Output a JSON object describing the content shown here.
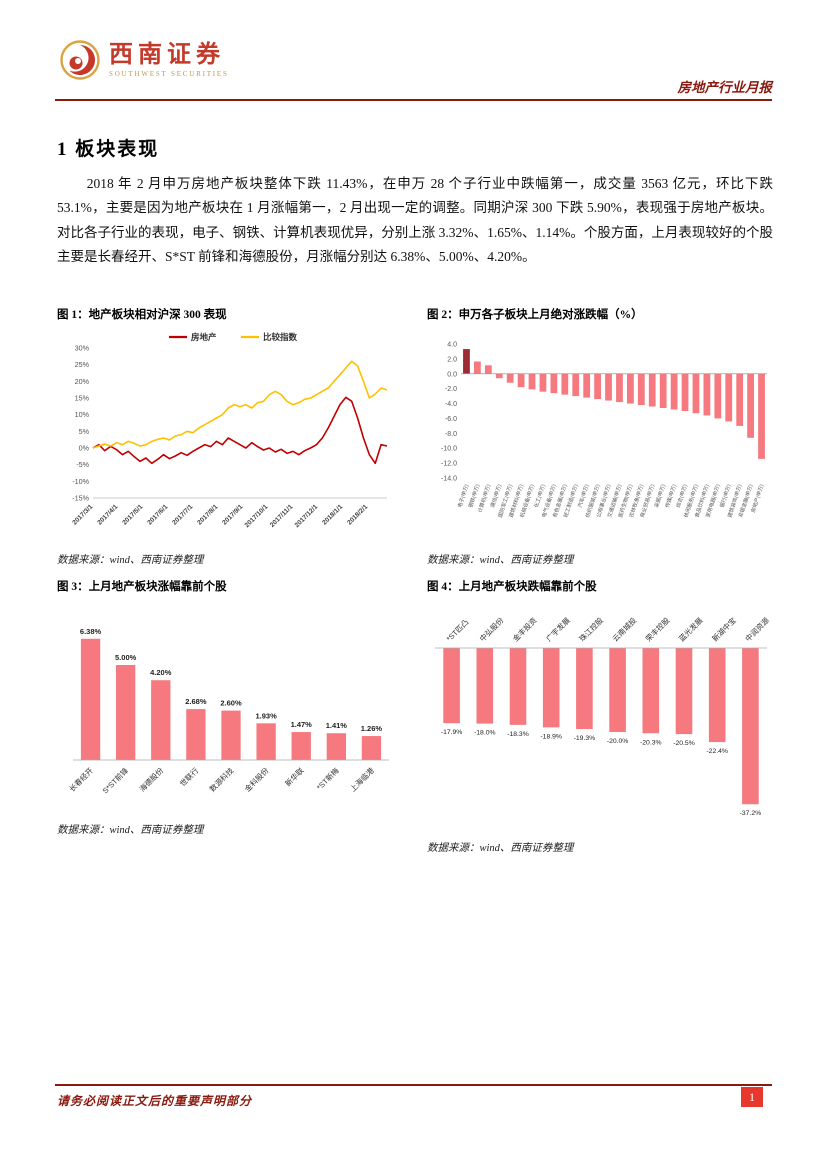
{
  "header": {
    "logo_cn": "西南证券",
    "logo_en": "SOUTHWEST SECURITIES",
    "report_title": "房地产行业月报"
  },
  "section": {
    "title": "1 板块表现",
    "paragraph": "2018 年 2 月申万房地产板块整体下跌 11.43%，在申万 28 个子行业中跌幅第一，成交量 3563 亿元，环比下跌 53.1%，主要是因为地产板块在 1 月涨幅第一，2 月出现一定的调整。同期沪深 300 下跌 5.90%，表现强于房地产板块。对比各子行业的表现，电子、钢铁、计算机表现优异，分别上涨 3.32%、1.65%、1.14%。个股方面，上月表现较好的个股主要是长春经开、S*ST 前锋和海德股份，月涨幅分别达 6.38%、5.00%、4.20%。"
  },
  "figures": [
    {
      "title": "图 1：地产板块相对沪深 300 表现",
      "source": "数据来源：wind、西南证券整理"
    },
    {
      "title": "图 2：申万各子板块上月绝对涨跌幅（%）",
      "source": "数据来源：wind、西南证券整理"
    },
    {
      "title": "图 3：上月地产板块涨幅靠前个股",
      "source": "数据来源：wind、西南证券整理"
    },
    {
      "title": "图 4：上月地产板块跌幅靠前个股",
      "source": "数据来源：wind、西南证券整理"
    }
  ],
  "chart_data": [
    {
      "type": "line",
      "title": "地产板块相对沪深300表现",
      "x_tick_labels": [
        "2017/3/1",
        "2017/4/1",
        "2017/5/1",
        "2017/6/1",
        "2017/7/1",
        "2017/8/1",
        "2017/9/1",
        "2017/10/1",
        "2017/11/1",
        "2017/12/1",
        "2018/1/1",
        "2018/2/1"
      ],
      "ylim": [
        -15,
        30
      ],
      "y_tick_step": 5,
      "y_tick_suffix": "%",
      "legend_position": "top",
      "grid": false,
      "series": [
        {
          "name": "房地产",
          "color": "#C00000",
          "values": [
            0,
            1,
            -0.8,
            0.5,
            -0.5,
            -2,
            -1,
            -2.6,
            -4,
            -3,
            -4.6,
            -3.4,
            -2,
            -3.2,
            -2.4,
            -1.4,
            -2.2,
            -1,
            0,
            1,
            0.4,
            2,
            1,
            3,
            2,
            1,
            0,
            1.6,
            0.4,
            -0.6,
            0,
            -1.2,
            -0.4,
            -1.6,
            -1,
            -2,
            -0.8,
            0,
            1,
            3,
            6,
            9.5,
            13,
            15.2,
            14,
            9,
            3,
            -2,
            -4.6,
            1,
            0.6
          ]
        },
        {
          "name": "比较指数",
          "color": "#FFC000",
          "values": [
            0,
            0.6,
            1.2,
            0.6,
            1.6,
            1,
            2,
            1.4,
            0.6,
            1,
            2,
            2.6,
            3,
            2.4,
            3.6,
            4,
            5,
            4.6,
            6,
            7,
            8,
            9,
            10,
            12,
            13,
            12.4,
            13,
            12,
            13.6,
            14,
            16,
            17,
            16,
            14,
            13,
            13.6,
            14.6,
            15,
            16,
            17,
            18,
            20,
            22,
            24,
            26,
            24.6,
            20,
            15,
            16.2,
            18,
            17.4
          ]
        }
      ]
    },
    {
      "type": "bar",
      "title": "申万各子板块上月绝对涨跌幅（%）",
      "categories": [
        "电子(申万)",
        "钢铁(申万)",
        "计算机(申万)",
        "通信(申万)",
        "国防军工(申万)",
        "建筑材料(申万)",
        "机械设备(申万)",
        "化工(申万)",
        "电气设备(申万)",
        "有色金属(申万)",
        "轻工制造(申万)",
        "汽车(申万)",
        "纺织服装(申万)",
        "公用事业(申万)",
        "交通运输(申万)",
        "医药生物(申万)",
        "农林牧渔(申万)",
        "商业贸易(申万)",
        "采掘(申万)",
        "传媒(申万)",
        "综合(申万)",
        "休闲服务(申万)",
        "食品饮料(申万)",
        "家用电器(申万)",
        "银行(申万)",
        "建筑装饰(申万)",
        "非银金融(申万)",
        "房地产(申万)"
      ],
      "values": [
        3.32,
        1.65,
        1.14,
        -0.6,
        -1.2,
        -1.8,
        -2.1,
        -2.4,
        -2.6,
        -2.8,
        -3.0,
        -3.2,
        -3.4,
        -3.6,
        -3.8,
        -4.0,
        -4.2,
        -4.4,
        -4.6,
        -4.8,
        -5.0,
        -5.3,
        -5.6,
        -6.0,
        -6.4,
        -7.0,
        -8.6,
        -11.43
      ],
      "ylim": [
        -14,
        4
      ],
      "y_tick_step": 2,
      "bar_color": "#F5797E",
      "highlight_first_color": "#9E2B33"
    },
    {
      "type": "bar",
      "title": "上月地产板块涨幅靠前个股",
      "categories": [
        "长春经开",
        "S*ST前锋",
        "海德股份",
        "世联行",
        "数源科技",
        "金科股份",
        "新华联",
        "*ST新梅",
        "上海临港"
      ],
      "values": [
        6.38,
        5.0,
        4.2,
        2.68,
        2.6,
        1.93,
        1.47,
        1.41,
        1.26
      ],
      "value_labels": [
        "6.38%",
        "5.00%",
        "4.20%",
        "2.68%",
        "2.60%",
        "1.93%",
        "1.47%",
        "1.41%",
        "1.26%"
      ],
      "bar_color": "#F5797E"
    },
    {
      "type": "bar",
      "title": "上月地产板块跌幅靠前个股",
      "categories": [
        "*ST匹凸",
        "中弘股份",
        "金丰投资",
        "广宇发展",
        "珠江控股",
        "云南城投",
        "荣丰控股",
        "蓝光发展",
        "新湖中宝",
        "中润资源"
      ],
      "values": [
        -17.9,
        -18.0,
        -18.3,
        -18.9,
        -19.3,
        -20.0,
        -20.3,
        -20.5,
        -22.4,
        -37.2
      ],
      "value_labels": [
        "-17.9%",
        "-18.0%",
        "-18.3%",
        "-18.9%",
        "-19.3%",
        "-20.0%",
        "-20.3%",
        "-20.5%",
        "-22.4%",
        "-37.2%"
      ],
      "bar_color": "#F5797E"
    }
  ],
  "colors": {
    "brand_dark_red": "#8A1A0F",
    "logo_red": "#C5392B",
    "logo_gold": "#C09A45",
    "line_red": "#C00000",
    "line_gold": "#FFC000",
    "bar_pink": "#F5797E",
    "bar_dark_red": "#9E2B33",
    "page_num_red": "#E8382D"
  },
  "footer": {
    "disclaimer": "请务必阅读正文后的重要声明部分",
    "page_number": "1"
  }
}
